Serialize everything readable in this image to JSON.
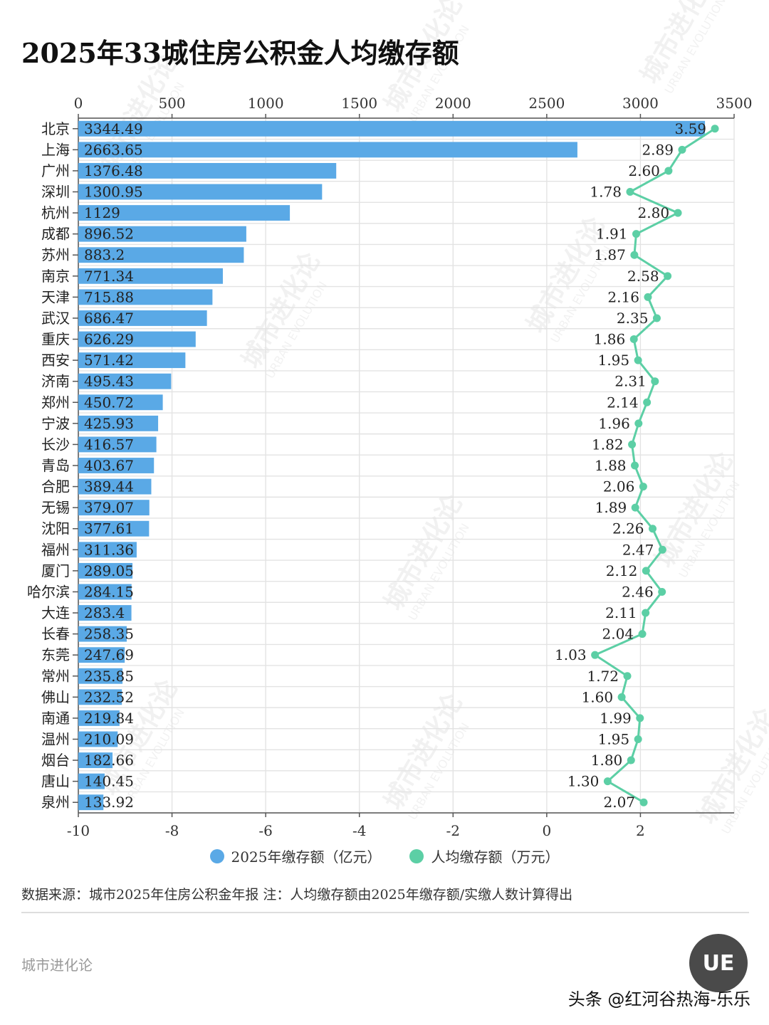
{
  "title": "2025年33城住房公积金人均缴存额",
  "chart_data": {
    "type": "bar",
    "categories": [
      "北京",
      "上海",
      "广州",
      "深圳",
      "杭州",
      "成都",
      "苏州",
      "南京",
      "天津",
      "武汉",
      "重庆",
      "西安",
      "济南",
      "郑州",
      "宁波",
      "长沙",
      "青岛",
      "合肥",
      "无锡",
      "沈阳",
      "福州",
      "厦门",
      "哈尔滨",
      "大连",
      "长春",
      "东莞",
      "常州",
      "佛山",
      "南通",
      "温州",
      "烟台",
      "唐山",
      "泉州"
    ],
    "series": [
      {
        "name": "2025年缴存额（亿元）",
        "type": "bar",
        "color": "#5aa9e6",
        "values": [
          3344.49,
          2663.65,
          1376.48,
          1300.95,
          1129,
          896.52,
          883.2,
          771.34,
          715.88,
          686.47,
          626.29,
          571.42,
          495.43,
          450.72,
          425.93,
          416.57,
          403.67,
          389.44,
          379.07,
          377.61,
          311.36,
          289.05,
          284.15,
          283.4,
          258.35,
          247.69,
          235.85,
          232.52,
          219.84,
          210.09,
          182.66,
          140.45,
          133.92
        ],
        "labels": [
          "3344.49",
          "2663.65",
          "1376.48",
          "1300.95",
          "1129",
          "896.52",
          "883.2",
          "771.34",
          "715.88",
          "686.47",
          "626.29",
          "571.42",
          "495.43",
          "450.72",
          "425.93",
          "416.57",
          "403.67",
          "389.44",
          "379.07",
          "377.61",
          "311.36",
          "289.05",
          "284.15",
          "283.4",
          "258.35",
          "247.69",
          "235.85",
          "232.52",
          "219.84",
          "210.09",
          "182.66",
          "140.45",
          "133.92"
        ]
      },
      {
        "name": "人均缴存额（万元）",
        "type": "line",
        "color": "#5ccfa5",
        "values": [
          3.59,
          2.89,
          2.6,
          1.78,
          2.8,
          1.91,
          1.87,
          2.58,
          2.16,
          2.35,
          1.86,
          1.95,
          2.31,
          2.14,
          1.96,
          1.82,
          1.88,
          2.06,
          1.89,
          2.26,
          2.47,
          2.12,
          2.46,
          2.11,
          2.04,
          1.03,
          1.72,
          1.6,
          1.99,
          1.95,
          1.8,
          1.3,
          2.07
        ],
        "labels": [
          "3.59",
          "2.89",
          "2.60",
          "1.78",
          "2.80",
          "1.91",
          "1.87",
          "2.58",
          "2.16",
          "2.35",
          "1.86",
          "1.95",
          "2.31",
          "2.14",
          "1.96",
          "1.82",
          "1.88",
          "2.06",
          "1.89",
          "2.26",
          "2.47",
          "2.12",
          "2.46",
          "2.11",
          "2.04",
          "1.03",
          "1.72",
          "1.60",
          "1.99",
          "1.95",
          "1.80",
          "1.30",
          "2.07"
        ]
      }
    ],
    "top_axis": {
      "range": [
        0,
        3500
      ],
      "ticks": [
        "0",
        "500",
        "1000",
        "1500",
        "2000",
        "2500",
        "3000",
        "3500"
      ],
      "tick_values": [
        0,
        500,
        1000,
        1500,
        2000,
        2500,
        3000,
        3500
      ]
    },
    "bottom_axis": {
      "range": [
        -10,
        4
      ],
      "ticks": [
        "-10",
        "-8",
        "-6",
        "-4",
        "-2",
        "0",
        "2"
      ],
      "tick_values": [
        -10,
        -8,
        -6,
        -4,
        -2,
        0,
        2
      ]
    },
    "grid": true,
    "legend_position": "bottom"
  },
  "legend": [
    {
      "label": "2025年缴存额（亿元）",
      "color": "#5aa9e6"
    },
    {
      "label": "人均缴存额（万元）",
      "color": "#5ccfa5"
    }
  ],
  "source": "数据来源：城市2025年住房公积金年报 注：人均缴存额由2025年缴存额/实缴人数计算得出",
  "brand": "城市进化论",
  "logo_text": "UE",
  "credit": "头条 @红河谷热海-乐乐",
  "watermark": {
    "cn": "城市进化论",
    "en": "URBAN EVOLUTION"
  }
}
